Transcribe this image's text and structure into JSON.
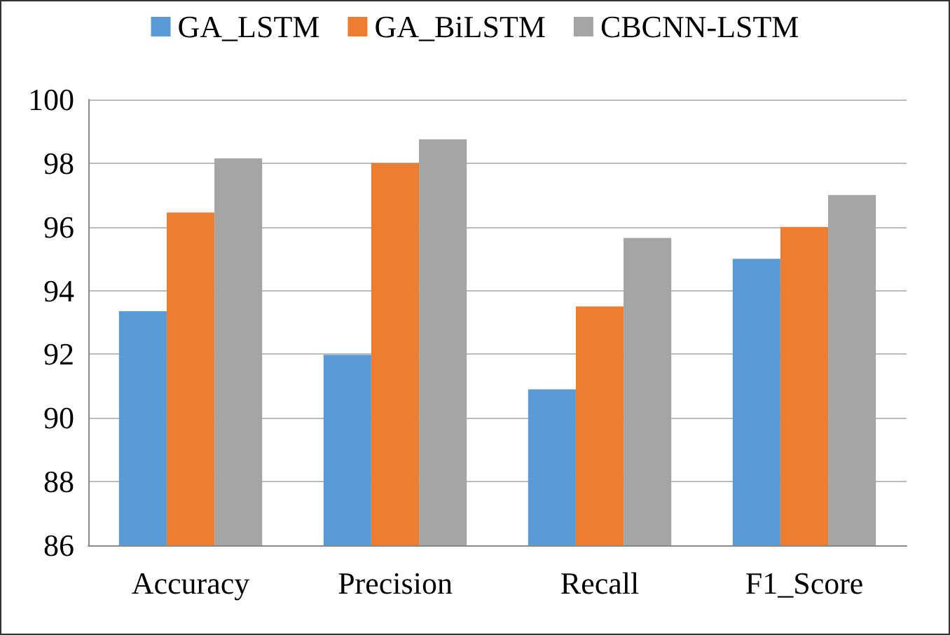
{
  "chart_data": {
    "type": "bar",
    "categories": [
      "Accuracy",
      "Precision",
      "Recall",
      "F1_Score"
    ],
    "series": [
      {
        "name": "GA_LSTM",
        "color": "#5b9bd5",
        "values": [
          93.35,
          91.98,
          90.9,
          95.0
        ]
      },
      {
        "name": "GA_BiLSTM",
        "color": "#ed7d31",
        "values": [
          96.45,
          98.0,
          93.5,
          96.0
        ]
      },
      {
        "name": "CBCNN-LSTM",
        "color": "#a5a5a5",
        "values": [
          98.15,
          98.75,
          95.65,
          97.0
        ]
      }
    ],
    "ylim": [
      86,
      100
    ],
    "yticks": [
      86,
      88,
      90,
      92,
      94,
      96,
      98,
      100
    ],
    "grid": "y",
    "legend": "top"
  }
}
